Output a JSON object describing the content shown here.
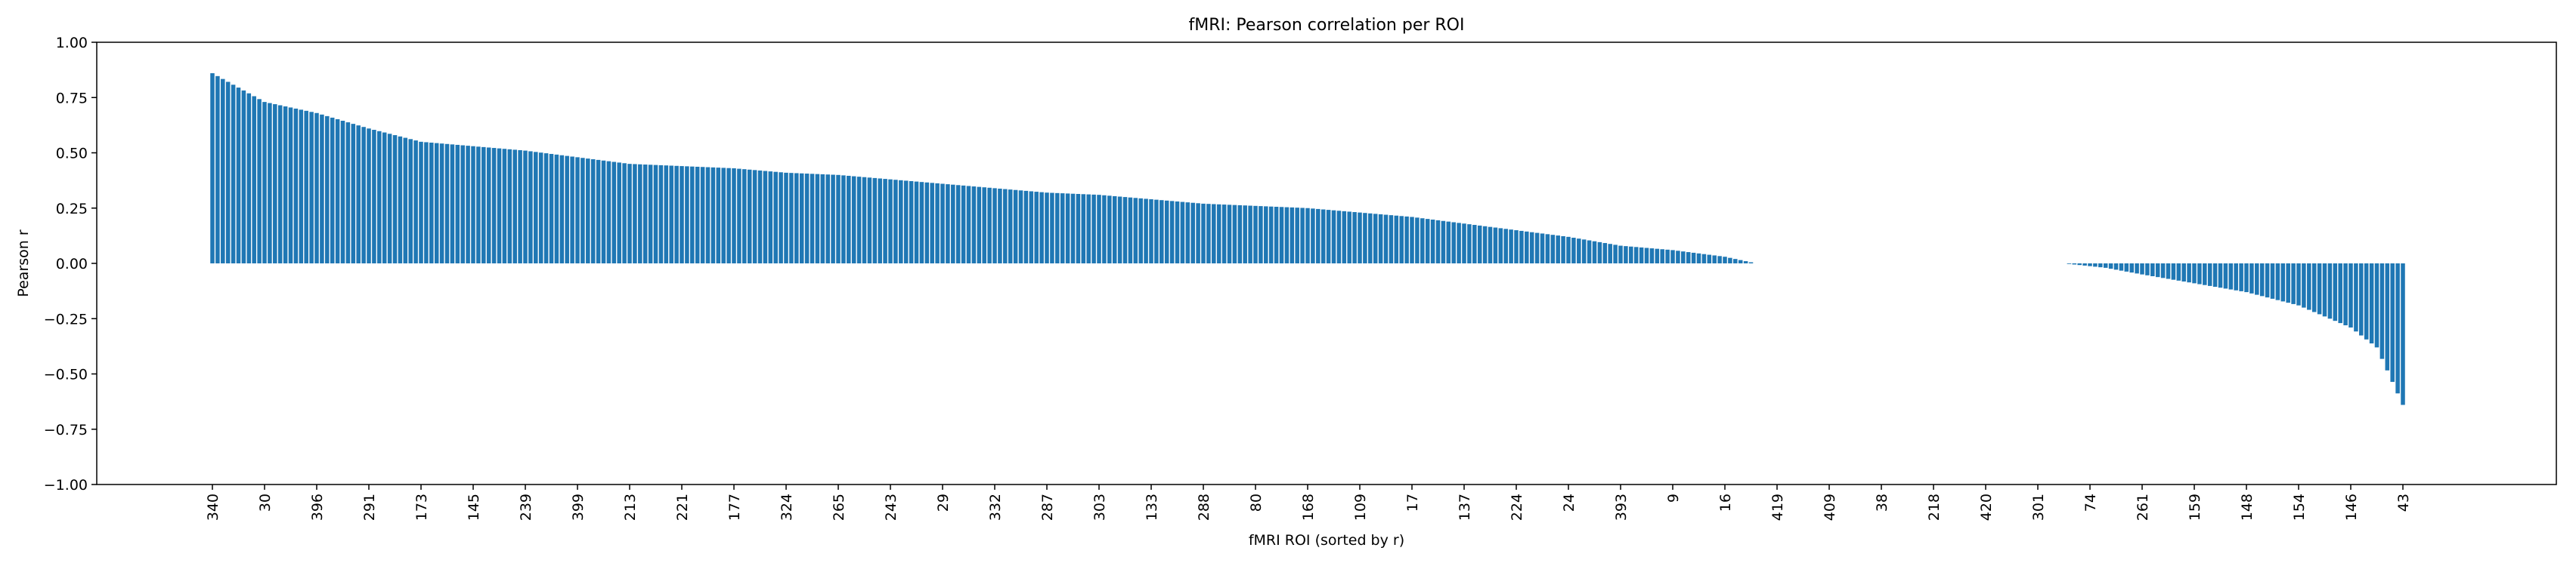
{
  "chart_data": {
    "type": "bar",
    "title": "fMRI: Pearson correlation per ROI",
    "xlabel": "fMRI ROI (sorted by r)",
    "ylabel": "Pearson r",
    "ylim": [
      -1.0,
      1.0
    ],
    "yticks": [
      "1.00",
      "0.75",
      "0.50",
      "0.25",
      "0.00",
      "−0.25",
      "−0.50",
      "−0.75",
      "−1.00"
    ],
    "ytick_values": [
      1.0,
      0.75,
      0.5,
      0.25,
      0.0,
      -0.25,
      -0.5,
      -0.75,
      -1.0
    ],
    "xtick_labels": [
      "340",
      "30",
      "396",
      "291",
      "173",
      "145",
      "239",
      "399",
      "213",
      "221",
      "177",
      "324",
      "265",
      "243",
      "29",
      "332",
      "287",
      "303",
      "133",
      "288",
      "80",
      "168",
      "109",
      "17",
      "137",
      "224",
      "24",
      "393",
      "9",
      "16",
      "419",
      "409",
      "38",
      "218",
      "420",
      "301",
      "74",
      "261",
      "159",
      "148",
      "154",
      "146",
      "43"
    ],
    "xtick_every": 10,
    "bar_color": "#1f77b4",
    "grid": false,
    "n_bars": 421,
    "profile_rank": [
      0,
      10,
      20,
      30,
      40,
      50,
      60,
      70,
      80,
      90,
      100,
      110,
      120,
      130,
      140,
      150,
      160,
      170,
      180,
      190,
      200,
      210,
      220,
      230,
      240,
      250,
      260,
      270,
      280,
      290,
      296,
      303,
      355,
      363,
      370,
      380,
      390,
      400,
      410,
      415,
      420
    ],
    "profile_r": [
      0.86,
      0.73,
      0.68,
      0.61,
      0.55,
      0.53,
      0.51,
      0.48,
      0.45,
      0.44,
      0.43,
      0.41,
      0.4,
      0.38,
      0.36,
      0.34,
      0.32,
      0.31,
      0.29,
      0.27,
      0.26,
      0.25,
      0.23,
      0.21,
      0.18,
      0.15,
      0.12,
      0.08,
      0.06,
      0.03,
      0.0,
      0.0,
      0.0,
      -0.02,
      -0.05,
      -0.09,
      -0.13,
      -0.19,
      -0.29,
      -0.38,
      -0.64
    ]
  }
}
